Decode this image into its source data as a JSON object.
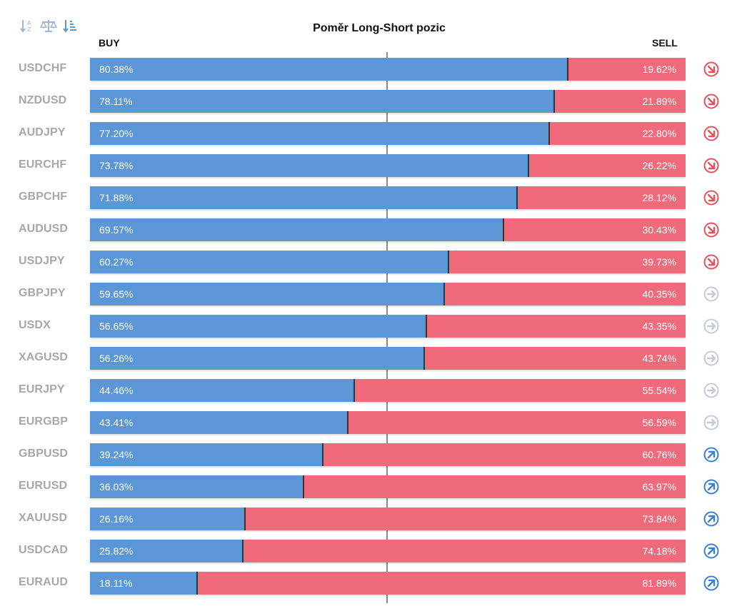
{
  "title": "Poměr Long-Short pozic",
  "headers": {
    "buy": "BUY",
    "sell": "SELL"
  },
  "toolbar": [
    "sort-alpha-icon",
    "balance-scale-icon",
    "sort-amount-icon"
  ],
  "colors": {
    "buy": "#5b96d6",
    "sell": "#ef6b7c",
    "down": "#e8505b",
    "neutral": "#c5cad6",
    "up": "#3a7fd0"
  },
  "rows": [
    {
      "symbol": "USDCHF",
      "buy": "80.38%",
      "sell": "19.62%",
      "trend": "down"
    },
    {
      "symbol": "NZDUSD",
      "buy": "78.11%",
      "sell": "21.89%",
      "trend": "down"
    },
    {
      "symbol": "AUDJPY",
      "buy": "77.20%",
      "sell": "22.80%",
      "trend": "down"
    },
    {
      "symbol": "EURCHF",
      "buy": "73.78%",
      "sell": "26.22%",
      "trend": "down"
    },
    {
      "symbol": "GBPCHF",
      "buy": "71.88%",
      "sell": "28.12%",
      "trend": "down"
    },
    {
      "symbol": "AUDUSD",
      "buy": "69.57%",
      "sell": "30.43%",
      "trend": "down"
    },
    {
      "symbol": "USDJPY",
      "buy": "60.27%",
      "sell": "39.73%",
      "trend": "down"
    },
    {
      "symbol": "GBPJPY",
      "buy": "59.65%",
      "sell": "40.35%",
      "trend": "neutral"
    },
    {
      "symbol": "USDX",
      "buy": "56.65%",
      "sell": "43.35%",
      "trend": "neutral"
    },
    {
      "symbol": "XAGUSD",
      "buy": "56.26%",
      "sell": "43.74%",
      "trend": "neutral"
    },
    {
      "symbol": "EURJPY",
      "buy": "44.46%",
      "sell": "55.54%",
      "trend": "neutral"
    },
    {
      "symbol": "EURGBP",
      "buy": "43.41%",
      "sell": "56.59%",
      "trend": "neutral"
    },
    {
      "symbol": "GBPUSD",
      "buy": "39.24%",
      "sell": "60.76%",
      "trend": "up"
    },
    {
      "symbol": "EURUSD",
      "buy": "36.03%",
      "sell": "63.97%",
      "trend": "up"
    },
    {
      "symbol": "XAUUSD",
      "buy": "26.16%",
      "sell": "73.84%",
      "trend": "up"
    },
    {
      "symbol": "USDCAD",
      "buy": "25.82%",
      "sell": "74.18%",
      "trend": "up"
    },
    {
      "symbol": "EURAUD",
      "buy": "18.11%",
      "sell": "81.89%",
      "trend": "up"
    }
  ]
}
